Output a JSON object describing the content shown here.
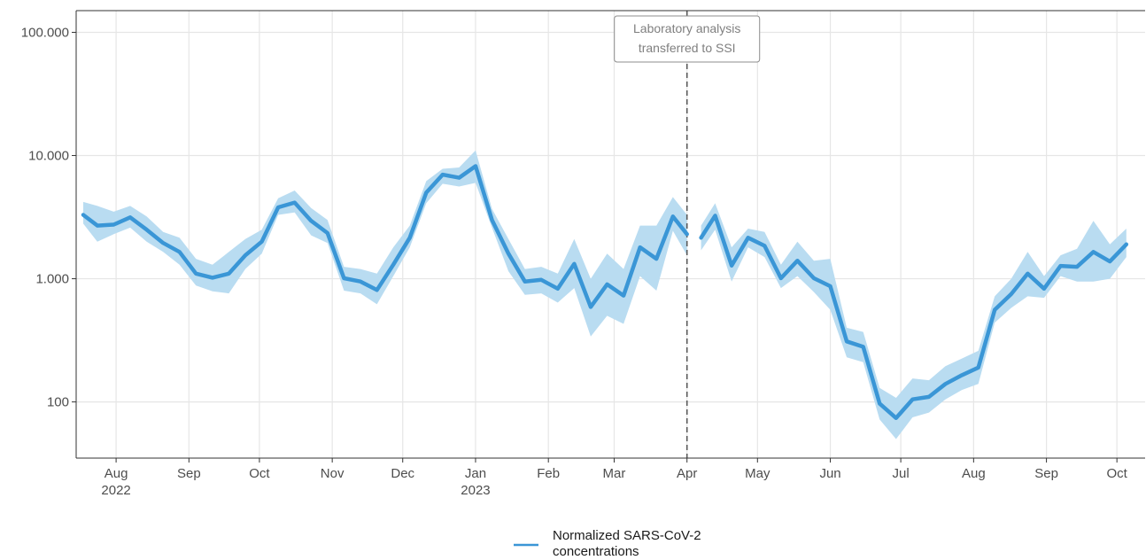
{
  "colors": {
    "line": "#3a96d6",
    "band": "#b9dcf1",
    "grid": "#e6e6e6",
    "vline": "#5a5a5a",
    "panel_border": "#333333"
  },
  "chart_data": {
    "type": "line",
    "title": "",
    "xlabel": "",
    "ylabel": "",
    "y_scale": "log10",
    "ylim": [
      35,
      150000
    ],
    "xlim": [
      "2022-07-15",
      "2023-10-13"
    ],
    "grid": "on",
    "legend_position": "bottom",
    "y_ticks": [
      {
        "value": 100,
        "label": "100"
      },
      {
        "value": 1000,
        "label": "1.000"
      },
      {
        "value": 10000,
        "label": "10.000"
      },
      {
        "value": 100000,
        "label": "100.000"
      }
    ],
    "x_ticks": [
      {
        "date": "2022-08-01",
        "label": "Aug",
        "year": "2022"
      },
      {
        "date": "2022-09-01",
        "label": "Sep",
        "year": ""
      },
      {
        "date": "2022-10-01",
        "label": "Oct",
        "year": ""
      },
      {
        "date": "2022-11-01",
        "label": "Nov",
        "year": ""
      },
      {
        "date": "2022-12-01",
        "label": "Dec",
        "year": ""
      },
      {
        "date": "2023-01-01",
        "label": "Jan",
        "year": "2023"
      },
      {
        "date": "2023-02-01",
        "label": "Feb",
        "year": ""
      },
      {
        "date": "2023-03-01",
        "label": "Mar",
        "year": ""
      },
      {
        "date": "2023-04-01",
        "label": "Apr",
        "year": ""
      },
      {
        "date": "2023-05-01",
        "label": "May",
        "year": ""
      },
      {
        "date": "2023-06-01",
        "label": "Jun",
        "year": ""
      },
      {
        "date": "2023-07-01",
        "label": "Jul",
        "year": ""
      },
      {
        "date": "2023-08-01",
        "label": "Aug",
        "year": ""
      },
      {
        "date": "2023-09-01",
        "label": "Sep",
        "year": ""
      },
      {
        "date": "2023-10-01",
        "label": "Oct",
        "year": ""
      }
    ],
    "annotation": {
      "date": "2023-04-01",
      "lines": [
        "Laboratory analysis",
        "transferred to SSI"
      ]
    },
    "series": [
      {
        "name": "Normalized SARS-CoV-2 concentrations",
        "segments": [
          [
            {
              "x": "2022-07-18",
              "y": 3300,
              "lo": 2800,
              "hi": 4200
            },
            {
              "x": "2022-07-24",
              "y": 2700,
              "lo": 2000,
              "hi": 3900
            },
            {
              "x": "2022-07-31",
              "y": 2750,
              "lo": 2300,
              "hi": 3500
            },
            {
              "x": "2022-08-07",
              "y": 3150,
              "lo": 2600,
              "hi": 3900
            },
            {
              "x": "2022-08-14",
              "y": 2500,
              "lo": 2000,
              "hi": 3200
            },
            {
              "x": "2022-08-21",
              "y": 1950,
              "lo": 1650,
              "hi": 2400
            },
            {
              "x": "2022-08-28",
              "y": 1650,
              "lo": 1300,
              "hi": 2150
            },
            {
              "x": "2022-09-04",
              "y": 1100,
              "lo": 880,
              "hi": 1450
            },
            {
              "x": "2022-09-11",
              "y": 1020,
              "lo": 790,
              "hi": 1300
            },
            {
              "x": "2022-09-18",
              "y": 1100,
              "lo": 760,
              "hi": 1650
            },
            {
              "x": "2022-09-25",
              "y": 1550,
              "lo": 1200,
              "hi": 2100
            },
            {
              "x": "2022-10-02",
              "y": 2000,
              "lo": 1600,
              "hi": 2500
            },
            {
              "x": "2022-10-09",
              "y": 3800,
              "lo": 3300,
              "hi": 4500
            },
            {
              "x": "2022-10-16",
              "y": 4150,
              "lo": 3450,
              "hi": 5200
            },
            {
              "x": "2022-10-23",
              "y": 2950,
              "lo": 2250,
              "hi": 3750
            },
            {
              "x": "2022-10-30",
              "y": 2350,
              "lo": 1950,
              "hi": 3000
            },
            {
              "x": "2022-11-06",
              "y": 1010,
              "lo": 800,
              "hi": 1250
            },
            {
              "x": "2022-11-13",
              "y": 950,
              "lo": 760,
              "hi": 1200
            },
            {
              "x": "2022-11-20",
              "y": 810,
              "lo": 620,
              "hi": 1100
            },
            {
              "x": "2022-11-27",
              "y": 1300,
              "lo": 1050,
              "hi": 1800
            },
            {
              "x": "2022-12-04",
              "y": 2150,
              "lo": 1800,
              "hi": 2700
            },
            {
              "x": "2022-12-11",
              "y": 5000,
              "lo": 4100,
              "hi": 6200
            },
            {
              "x": "2022-12-18",
              "y": 7000,
              "lo": 5900,
              "hi": 7800
            },
            {
              "x": "2022-12-25",
              "y": 6600,
              "lo": 5600,
              "hi": 8000
            },
            {
              "x": "2023-01-01",
              "y": 8200,
              "lo": 6000,
              "hi": 11000
            },
            {
              "x": "2023-01-08",
              "y": 3000,
              "lo": 2600,
              "hi": 3700
            },
            {
              "x": "2023-01-15",
              "y": 1600,
              "lo": 1150,
              "hi": 2100
            },
            {
              "x": "2023-01-22",
              "y": 950,
              "lo": 740,
              "hi": 1200
            },
            {
              "x": "2023-01-29",
              "y": 980,
              "lo": 760,
              "hi": 1250
            },
            {
              "x": "2023-02-05",
              "y": 830,
              "lo": 640,
              "hi": 1100
            },
            {
              "x": "2023-02-12",
              "y": 1320,
              "lo": 840,
              "hi": 2100
            },
            {
              "x": "2023-02-19",
              "y": 590,
              "lo": 340,
              "hi": 1000
            },
            {
              "x": "2023-02-26",
              "y": 900,
              "lo": 500,
              "hi": 1600
            },
            {
              "x": "2023-03-05",
              "y": 730,
              "lo": 430,
              "hi": 1200
            },
            {
              "x": "2023-03-12",
              "y": 1800,
              "lo": 1050,
              "hi": 2700
            },
            {
              "x": "2023-03-19",
              "y": 1450,
              "lo": 800,
              "hi": 2700
            },
            {
              "x": "2023-03-26",
              "y": 3200,
              "lo": 2450,
              "hi": 4600
            },
            {
              "x": "2023-04-01",
              "y": 2300,
              "lo": 1550,
              "hi": 3300
            }
          ],
          [
            {
              "x": "2023-04-07",
              "y": 2150,
              "lo": 1700,
              "hi": 2700
            },
            {
              "x": "2023-04-13",
              "y": 3250,
              "lo": 2500,
              "hi": 4100
            },
            {
              "x": "2023-04-20",
              "y": 1280,
              "lo": 950,
              "hi": 1800
            },
            {
              "x": "2023-04-27",
              "y": 2150,
              "lo": 1800,
              "hi": 2550
            },
            {
              "x": "2023-05-04",
              "y": 1850,
              "lo": 1500,
              "hi": 2400
            },
            {
              "x": "2023-05-11",
              "y": 1010,
              "lo": 840,
              "hi": 1300
            },
            {
              "x": "2023-05-18",
              "y": 1400,
              "lo": 1050,
              "hi": 2000
            },
            {
              "x": "2023-05-25",
              "y": 1010,
              "lo": 780,
              "hi": 1400
            },
            {
              "x": "2023-06-01",
              "y": 870,
              "lo": 560,
              "hi": 1450
            },
            {
              "x": "2023-06-08",
              "y": 310,
              "lo": 230,
              "hi": 400
            },
            {
              "x": "2023-06-15",
              "y": 280,
              "lo": 210,
              "hi": 370
            },
            {
              "x": "2023-06-22",
              "y": 97,
              "lo": 72,
              "hi": 130
            },
            {
              "x": "2023-06-29",
              "y": 74,
              "lo": 50,
              "hi": 108
            },
            {
              "x": "2023-07-06",
              "y": 105,
              "lo": 75,
              "hi": 155
            },
            {
              "x": "2023-07-13",
              "y": 110,
              "lo": 82,
              "hi": 150
            },
            {
              "x": "2023-07-20",
              "y": 140,
              "lo": 105,
              "hi": 195
            },
            {
              "x": "2023-07-27",
              "y": 165,
              "lo": 125,
              "hi": 225
            },
            {
              "x": "2023-08-03",
              "y": 190,
              "lo": 140,
              "hi": 260
            },
            {
              "x": "2023-08-10",
              "y": 560,
              "lo": 440,
              "hi": 720
            },
            {
              "x": "2023-08-17",
              "y": 750,
              "lo": 580,
              "hi": 1000
            },
            {
              "x": "2023-08-24",
              "y": 1100,
              "lo": 720,
              "hi": 1650
            },
            {
              "x": "2023-08-31",
              "y": 830,
              "lo": 700,
              "hi": 1050
            },
            {
              "x": "2023-09-07",
              "y": 1270,
              "lo": 1050,
              "hi": 1550
            },
            {
              "x": "2023-09-14",
              "y": 1250,
              "lo": 950,
              "hi": 1750
            },
            {
              "x": "2023-09-21",
              "y": 1650,
              "lo": 950,
              "hi": 2950
            },
            {
              "x": "2023-09-28",
              "y": 1380,
              "lo": 1000,
              "hi": 1900
            },
            {
              "x": "2023-10-05",
              "y": 1900,
              "lo": 1500,
              "hi": 2550
            }
          ]
        ]
      }
    ],
    "legend": [
      {
        "label_lines": [
          "Normalized SARS-CoV-2",
          "concentrations"
        ]
      }
    ]
  }
}
